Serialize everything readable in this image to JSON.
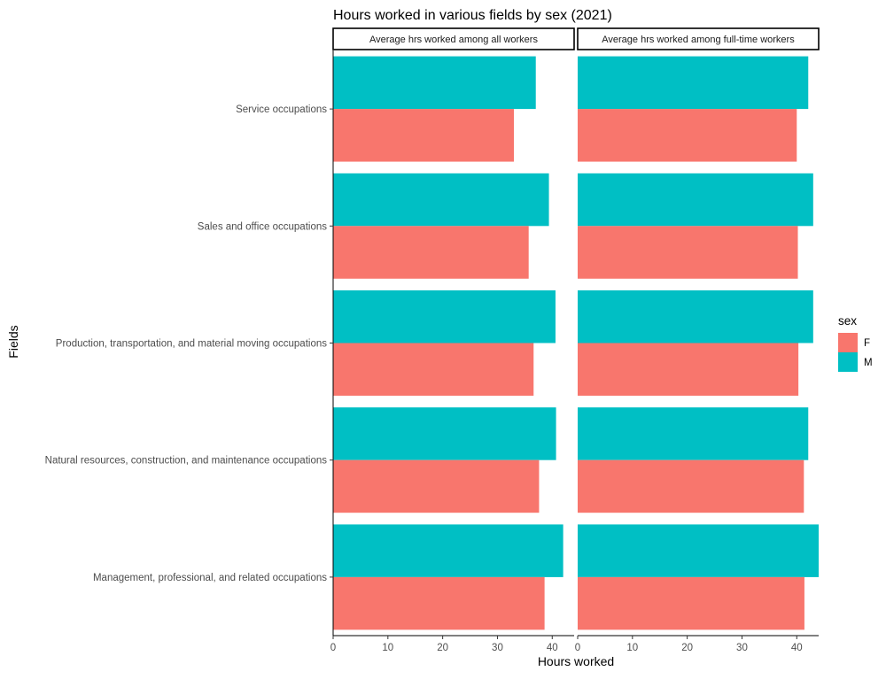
{
  "chart_data": {
    "type": "bar",
    "orientation": "horizontal",
    "title": "Hours worked in various fields by sex (2021)",
    "xlabel": "Hours worked",
    "ylabel": "Fields",
    "xlim": [
      0,
      44
    ],
    "xticks": [
      0,
      10,
      20,
      30,
      40
    ],
    "grid": false,
    "categories": [
      "Service occupations",
      "Sales and office occupations",
      "Production, transportation, and material moving occupations",
      "Natural resources, construction, and maintenance occupations",
      "Management, professional, and related occupations"
    ],
    "panels": [
      {
        "label": "Average hrs worked among all workers",
        "series": [
          {
            "name": "F",
            "values": [
              33.0,
              35.7,
              36.6,
              37.6,
              38.6
            ]
          },
          {
            "name": "M",
            "values": [
              37.0,
              39.4,
              40.6,
              40.7,
              42.0
            ]
          }
        ]
      },
      {
        "label": "Average hrs worked among full-time workers",
        "series": [
          {
            "name": "F",
            "values": [
              40.0,
              40.2,
              40.3,
              41.3,
              41.4
            ]
          },
          {
            "name": "M",
            "values": [
              42.1,
              43.0,
              43.0,
              42.1,
              44.0
            ]
          }
        ]
      }
    ],
    "legend": {
      "title": "sex",
      "position": "right",
      "entries": [
        {
          "label": "F",
          "color": "#F8766D"
        },
        {
          "label": "M",
          "color": "#00BFC4"
        }
      ]
    },
    "colors": {
      "F": "#F8766D",
      "M": "#00BFC4"
    }
  }
}
